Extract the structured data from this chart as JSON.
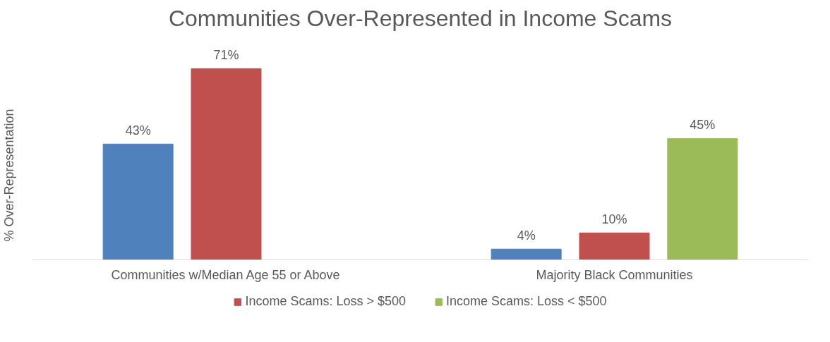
{
  "chart_data": {
    "type": "bar",
    "title": "Communities Over-Represented in Income Scams",
    "ylabel": "% Over-Representation",
    "categories": [
      "Communities w/Median Age 55 or Above",
      "Majority Black Communities"
    ],
    "series": [
      {
        "color": "#4f81bd",
        "values": [
          43,
          4
        ],
        "value_labels": [
          "43%",
          "4%"
        ]
      },
      {
        "name": "Income Scams: Loss > $500",
        "color": "#c0504d",
        "values": [
          71,
          10
        ],
        "value_labels": [
          "71%",
          "10%"
        ]
      },
      {
        "name": "Income Scams: Loss < $500",
        "color": "#9bbb59",
        "values": [
          null,
          45
        ],
        "value_labels": [
          null,
          "45%"
        ]
      }
    ],
    "legend": "bottom",
    "tick_labels": "x"
  }
}
